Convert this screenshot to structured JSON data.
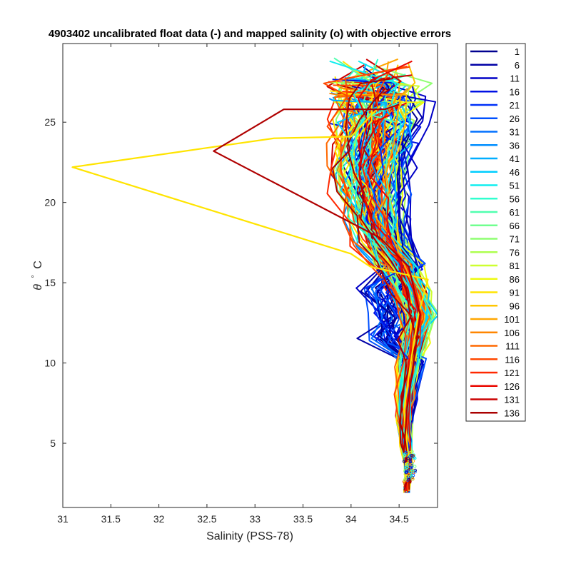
{
  "chart_data": {
    "type": "line",
    "title": "4903402 uncalibrated float data (-) and mapped salinity (o) with objective errors",
    "xlabel": "Salinity (PSS-78)",
    "ylabel_symbol": "θ",
    "ylabel_degree": "°",
    "ylabel_unit": "C",
    "xlim": [
      31.0,
      34.9
    ],
    "ylim": [
      1.0,
      29.9
    ],
    "x_ticks": [
      31,
      31.5,
      32,
      32.5,
      33,
      33.5,
      34,
      34.5
    ],
    "x_tick_labels": [
      "31",
      "31.5",
      "32",
      "32.5",
      "33",
      "33.5",
      "34",
      "34.5"
    ],
    "y_ticks": [
      5,
      10,
      15,
      20,
      25
    ],
    "y_tick_labels": [
      "5",
      "10",
      "15",
      "20",
      "25"
    ],
    "grid": false,
    "legend_position": "outside-right",
    "legend": [
      {
        "label": "1",
        "color": "#000090"
      },
      {
        "label": "6",
        "color": "#0000a6"
      },
      {
        "label": "11",
        "color": "#0000c6"
      },
      {
        "label": "16",
        "color": "#0010e4"
      },
      {
        "label": "21",
        "color": "#0030f8"
      },
      {
        "label": "26",
        "color": "#0050ff"
      },
      {
        "label": "31",
        "color": "#0070ff"
      },
      {
        "label": "36",
        "color": "#008eff"
      },
      {
        "label": "41",
        "color": "#00aeff"
      },
      {
        "label": "46",
        "color": "#00ceff"
      },
      {
        "label": "51",
        "color": "#10eeef"
      },
      {
        "label": "56",
        "color": "#30ffcf"
      },
      {
        "label": "61",
        "color": "#50ffaf"
      },
      {
        "label": "66",
        "color": "#70ff8f"
      },
      {
        "label": "71",
        "color": "#8eff70"
      },
      {
        "label": "76",
        "color": "#aeff50"
      },
      {
        "label": "81",
        "color": "#ceff30"
      },
      {
        "label": "86",
        "color": "#eefa10"
      },
      {
        "label": "91",
        "color": "#ffe400"
      },
      {
        "label": "96",
        "color": "#ffc600"
      },
      {
        "label": "101",
        "color": "#ffa600"
      },
      {
        "label": "106",
        "color": "#ff8600"
      },
      {
        "label": "111",
        "color": "#ff6800"
      },
      {
        "label": "116",
        "color": "#ff4800"
      },
      {
        "label": "121",
        "color": "#ff2800"
      },
      {
        "label": "126",
        "color": "#ea0800"
      },
      {
        "label": "131",
        "color": "#ca0000"
      },
      {
        "label": "136",
        "color": "#aa0000"
      }
    ],
    "highlighted_series": [
      {
        "name": "86",
        "color": "#ffe400",
        "points": [
          [
            34.55,
            2.5
          ],
          [
            34.6,
            4
          ],
          [
            34.55,
            7
          ],
          [
            34.62,
            10
          ],
          [
            34.7,
            13
          ],
          [
            34.8,
            15.2
          ],
          [
            34.2,
            16
          ],
          [
            34.0,
            16.8
          ],
          [
            31.1,
            22.2
          ],
          [
            32.5,
            23.4
          ],
          [
            33.2,
            24
          ],
          [
            34.0,
            24.1
          ],
          [
            34.3,
            26
          ]
        ]
      },
      {
        "name": "131",
        "color": "#b00000",
        "points": [
          [
            34.62,
            2.5
          ],
          [
            34.55,
            4.5
          ],
          [
            34.58,
            7
          ],
          [
            34.65,
            10
          ],
          [
            34.72,
            13
          ],
          [
            34.6,
            16
          ],
          [
            34.3,
            17.8
          ],
          [
            32.57,
            23.2
          ],
          [
            33.3,
            25.8
          ],
          [
            34.35,
            25.8
          ],
          [
            34.5,
            26.1
          ]
        ]
      }
    ],
    "profile_shape": [
      [
        34.58,
        2.2
      ],
      [
        34.6,
        3.5
      ],
      [
        34.57,
        5
      ],
      [
        34.56,
        6.5
      ],
      [
        34.58,
        8
      ],
      [
        34.62,
        10
      ],
      [
        34.67,
        11.5
      ],
      [
        34.71,
        13
      ],
      [
        34.63,
        14.5
      ],
      [
        34.5,
        16
      ],
      [
        34.35,
        17.5
      ],
      [
        34.25,
        19
      ],
      [
        34.2,
        20.5
      ],
      [
        34.2,
        22
      ],
      [
        34.22,
        23.5
      ],
      [
        34.25,
        25
      ],
      [
        34.3,
        26.5
      ],
      [
        34.35,
        27.5
      ]
    ]
  }
}
